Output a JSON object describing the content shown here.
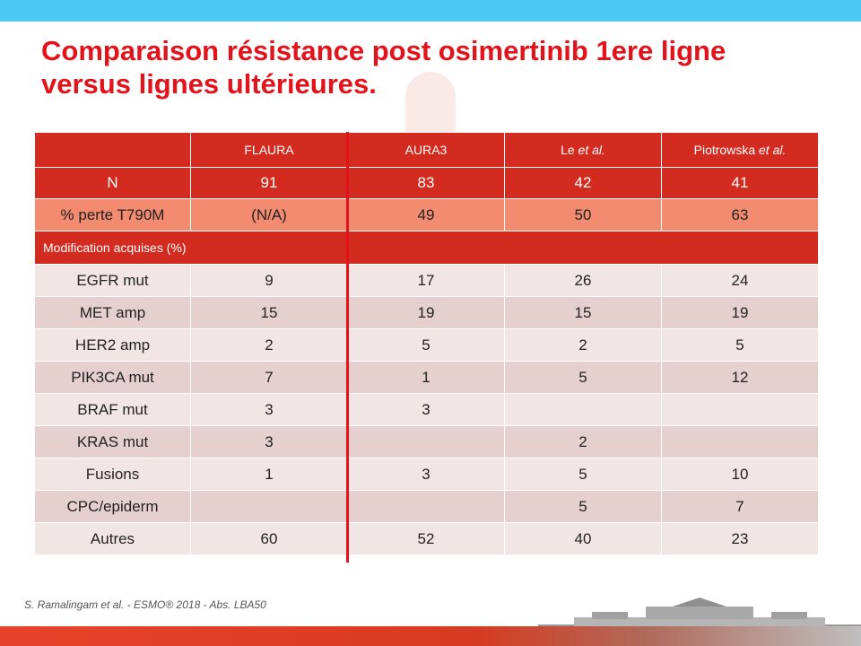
{
  "slide": {
    "title_line1": "Comparaison résistance post osimertinib 1ere ligne",
    "title_line2": "versus lignes ultérieures.",
    "citation": "S. Ramalingam et al. - ESMO® 2018 - Abs. LBA50"
  },
  "table": {
    "headers": [
      {
        "text": "FLAURA",
        "suffix": ""
      },
      {
        "text": "AURA3",
        "suffix": ""
      },
      {
        "text": "Le ",
        "suffix": "et al."
      },
      {
        "text": "Piotrowska ",
        "suffix": "et al."
      }
    ],
    "n_row": {
      "label": "N",
      "values": [
        "91",
        "83",
        "42",
        "41"
      ]
    },
    "t790m_row": {
      "label": "% perte T790M",
      "values": [
        "(N/A)",
        "49",
        "50",
        "63"
      ]
    },
    "section_label": "Modification acquises (%)",
    "rows": [
      {
        "label": "EGFR mut",
        "values": [
          "9",
          "17",
          "26",
          "24"
        ]
      },
      {
        "label": "MET amp",
        "values": [
          "15",
          "19",
          "15",
          "19"
        ]
      },
      {
        "label": "HER2 amp",
        "values": [
          "2",
          "5",
          "2",
          "5"
        ]
      },
      {
        "label": "PIK3CA mut",
        "values": [
          "7",
          "1",
          "5",
          "12"
        ]
      },
      {
        "label": "BRAF mut",
        "values": [
          "3",
          "3",
          "",
          ""
        ]
      },
      {
        "label": "KRAS mut",
        "values": [
          "3",
          "",
          "2",
          ""
        ]
      },
      {
        "label": "Fusions",
        "values": [
          "1",
          "3",
          "5",
          "10"
        ]
      },
      {
        "label": "CPC/epiderm",
        "values": [
          "",
          "",
          "5",
          "7"
        ]
      },
      {
        "label": "Autres",
        "values": [
          "60",
          "52",
          "40",
          "23"
        ]
      }
    ]
  },
  "colors": {
    "title_red": "#e3131c",
    "header_red": "#d42b20",
    "salmon": "#f28b70",
    "row_light": "#f2e6e5",
    "row_dark": "#e6cfcf",
    "top_bar_blue": "#4dc9f6"
  }
}
